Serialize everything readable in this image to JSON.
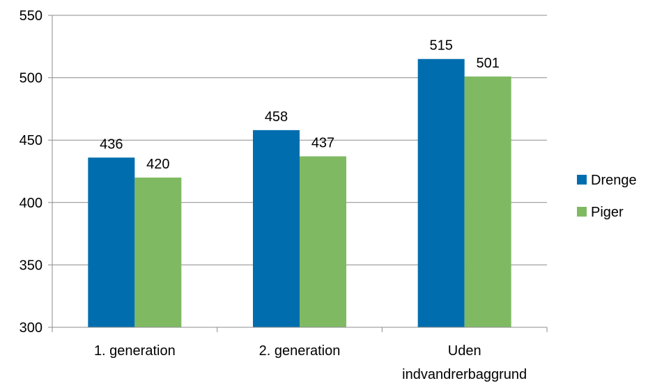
{
  "chart_data": {
    "type": "bar",
    "categories": [
      "1. generation",
      "2. generation",
      "Uden indvandrerbaggrund"
    ],
    "category_lines": [
      [
        "1. generation"
      ],
      [
        "2. generation"
      ],
      [
        "Uden",
        "indvandrerbaggrund"
      ]
    ],
    "series": [
      {
        "name": "Drenge",
        "values": [
          436,
          458,
          515
        ],
        "color": "#006EAE"
      },
      {
        "name": "Piger",
        "values": [
          420,
          437,
          501
        ],
        "color": "#7FBA63"
      }
    ],
    "ylim": [
      300,
      550
    ],
    "yticks": [
      300,
      350,
      400,
      450,
      500,
      550
    ],
    "grid": true,
    "legend_position": "right",
    "title": "",
    "xlabel": "",
    "ylabel": ""
  },
  "colors": {
    "grid": "#8C8C8C",
    "axis": "#8C8C8C"
  }
}
